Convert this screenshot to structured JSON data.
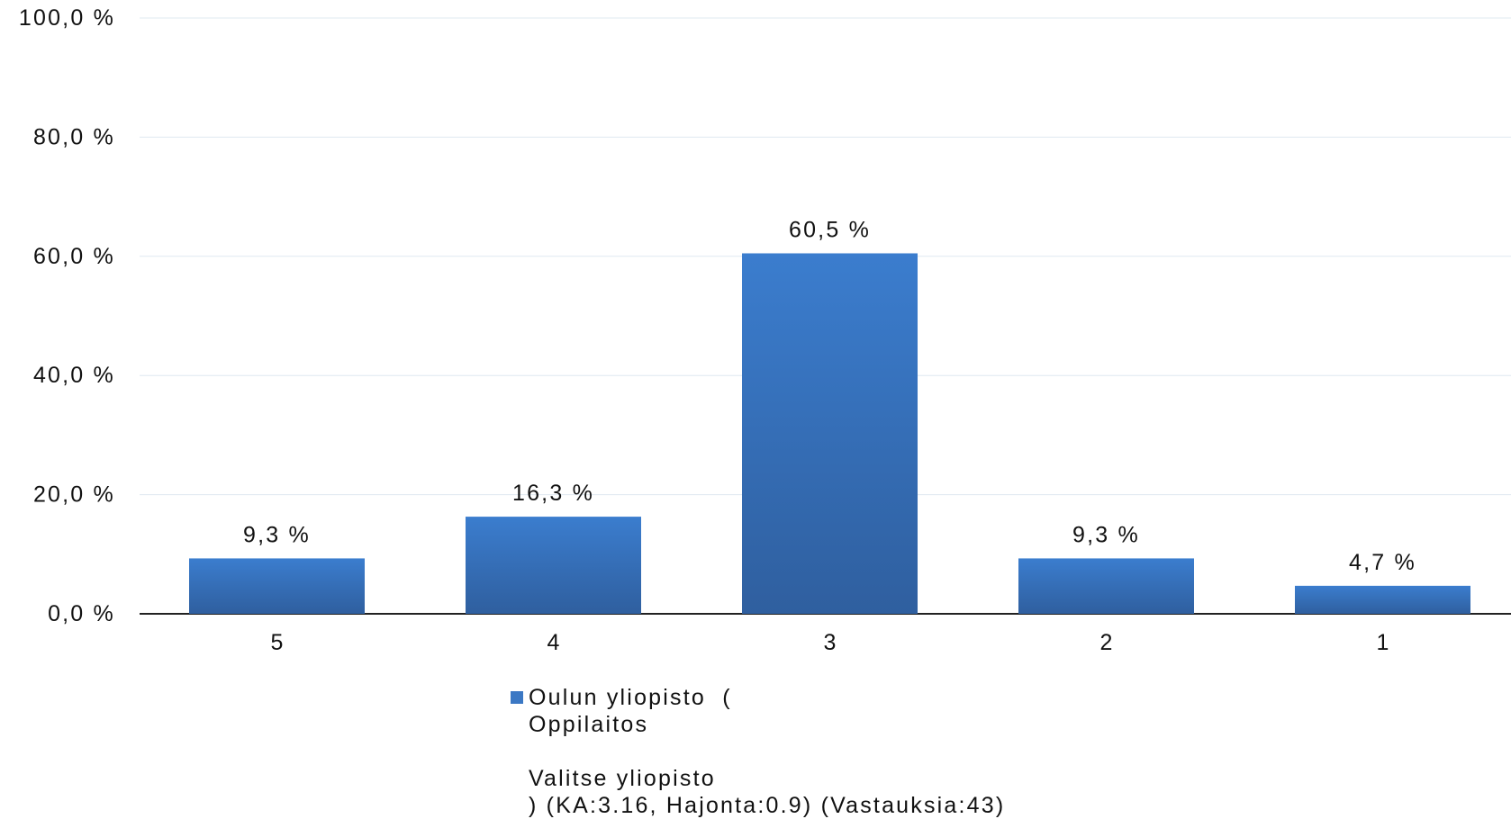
{
  "chart_data": {
    "type": "bar",
    "categories": [
      "5",
      "4",
      "3",
      "2",
      "1"
    ],
    "series": [
      {
        "name": "Oulun yliopisto  (\nOppilaitos\n\nValitse yliopisto\n) (KA:3.16, Hajonta:0.9) (Vastauksia:43)",
        "values": [
          9.3,
          16.3,
          60.5,
          9.3,
          4.7
        ],
        "value_labels": [
          "9,3 %",
          "16,3 %",
          "60,5 %",
          "9,3 %",
          "4,7 %"
        ],
        "color": "#3b78c4"
      }
    ],
    "ylim": [
      0,
      100
    ],
    "y_ticks": [
      0,
      20,
      40,
      60,
      80,
      100
    ],
    "y_tick_labels": [
      "0,0 %",
      "20,0 %",
      "40,0 %",
      "60,0 %",
      "80,0 %",
      "100,0 %"
    ],
    "grid": true,
    "legend_position": "bottom-center",
    "colors": {
      "bar_top": "#3b7dce",
      "bar_bottom": "#2f5f9f",
      "grid": "#dfe8f0",
      "axis": "#222222",
      "text": "#111111"
    }
  }
}
